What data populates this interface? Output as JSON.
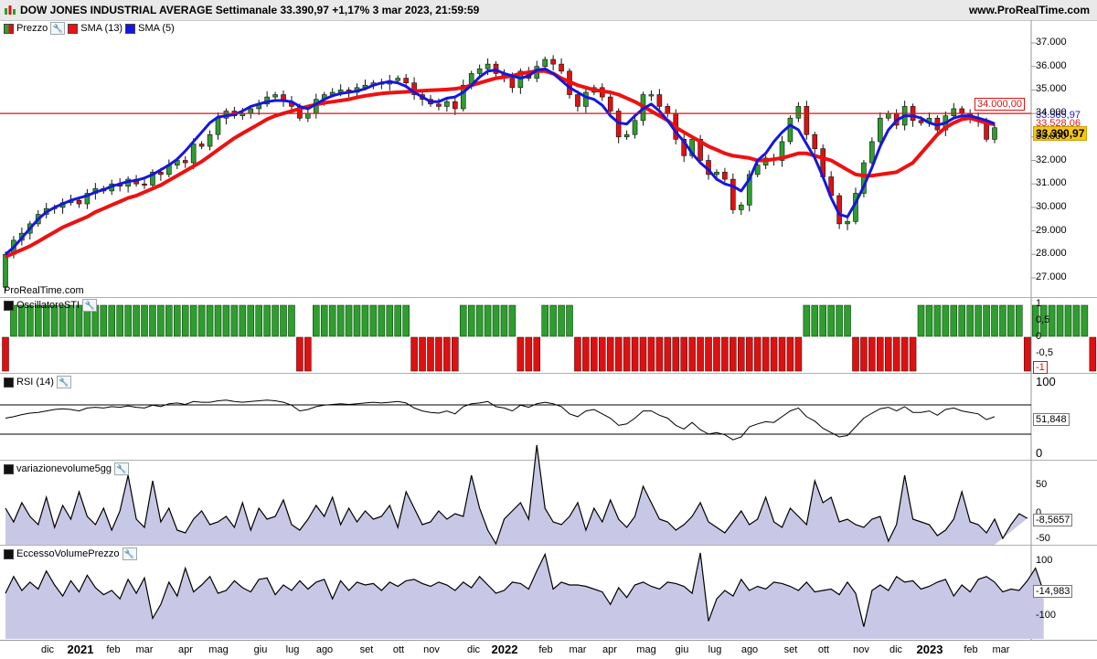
{
  "header": {
    "title": "DOW JONES INDUSTRIAL AVERAGE Settimanale 33.390,97 +1,17% 3 mar 2023, 21:59:59",
    "site": "www.ProRealTime.com"
  },
  "price_panel": {
    "legend": [
      {
        "label": "Prezzo",
        "color": "#2e8b2e"
      },
      {
        "label": "SMA (13)",
        "color": "#ee1111"
      },
      {
        "label": "SMA (5)",
        "color": "#1616dd"
      }
    ],
    "axis_labels": [
      "37.000",
      "36.000",
      "35.000",
      "34.000",
      "33.000",
      "32.000",
      "31.000",
      "30.000",
      "29.000",
      "28.000",
      "27.000"
    ],
    "level_tag": "34.000,00",
    "sma5_tag": "33.565,97",
    "sma13_tag": "33.528,06",
    "price_tag": "33.390,97",
    "watermark": "ProRealTime.com"
  },
  "sti_panel": {
    "legend": "OscillatoreSTI",
    "axis_labels": [
      "1",
      "0,5",
      "0",
      "-0,5"
    ],
    "value_tag": "-1"
  },
  "rsi_panel": {
    "legend": "RSI (14)",
    "axis_labels": [
      "100",
      "0"
    ],
    "value_tag": "51,848"
  },
  "vol5_panel": {
    "legend": "variazionevolume5gg",
    "axis_labels": [
      "50",
      "0",
      "-50"
    ],
    "value_tag": "-8,5657"
  },
  "evp_panel": {
    "legend": "EccessoVolumePrezzo",
    "axis_labels": [
      "100",
      "-100"
    ],
    "value_tag": "-14,983"
  },
  "x_axis": [
    {
      "label": "dic",
      "year": false
    },
    {
      "label": "2021",
      "year": true
    },
    {
      "label": "feb",
      "year": false
    },
    {
      "label": "mar",
      "year": false
    },
    {
      "label": "apr",
      "year": false
    },
    {
      "label": "mag",
      "year": false
    },
    {
      "label": "giu",
      "year": false
    },
    {
      "label": "lug",
      "year": false
    },
    {
      "label": "ago",
      "year": false
    },
    {
      "label": "set",
      "year": false
    },
    {
      "label": "ott",
      "year": false
    },
    {
      "label": "nov",
      "year": false
    },
    {
      "label": "dic",
      "year": false
    },
    {
      "label": "2022",
      "year": true
    },
    {
      "label": "feb",
      "year": false
    },
    {
      "label": "mar",
      "year": false
    },
    {
      "label": "apr",
      "year": false
    },
    {
      "label": "mag",
      "year": false
    },
    {
      "label": "giu",
      "year": false
    },
    {
      "label": "lug",
      "year": false
    },
    {
      "label": "ago",
      "year": false
    },
    {
      "label": "set",
      "year": false
    },
    {
      "label": "ott",
      "year": false
    },
    {
      "label": "nov",
      "year": false
    },
    {
      "label": "dic",
      "year": false
    },
    {
      "label": "2023",
      "year": true
    },
    {
      "label": "feb",
      "year": false
    },
    {
      "label": "mar",
      "year": false
    }
  ],
  "colors": {
    "up": "#2e9e2e",
    "down": "#dd1111",
    "sma13": "#ee1111",
    "sma5": "#1616dd",
    "price_tag": "#f5c518",
    "fill": "#c8c8e6"
  },
  "chart_data": {
    "type": "candlestick",
    "title": "DOW JONES INDUSTRIAL AVERAGE Settimanale",
    "ylim": [
      26500,
      37600
    ],
    "closes": [
      28000,
      28600,
      28900,
      29300,
      29700,
      29950,
      30000,
      30200,
      30300,
      30150,
      30600,
      30800,
      30700,
      31000,
      30900,
      31200,
      31000,
      30950,
      31500,
      31400,
      31800,
      32000,
      31900,
      32700,
      32600,
      33100,
      33800,
      34100,
      33900,
      34000,
      34200,
      34400,
      34700,
      34800,
      34500,
      34300,
      33800,
      34000,
      34600,
      34800,
      34900,
      35000,
      34900,
      35100,
      35200,
      35300,
      35250,
      35400,
      35500,
      35300,
      34800,
      34600,
      34400,
      34300,
      34500,
      34200,
      35200,
      35700,
      35900,
      36100,
      35700,
      35500,
      35100,
      35800,
      35500,
      36000,
      36300,
      36100,
      35800,
      34800,
      34300,
      34900,
      35100,
      34700,
      34100,
      33000,
      33100,
      33700,
      34800,
      34800,
      34300,
      34000,
      32900,
      32200,
      32900,
      32000,
      31400,
      31500,
      31200,
      29900,
      30100,
      31400,
      31800,
      32100,
      32000,
      32800,
      33800,
      34300,
      33100,
      32500,
      31300,
      30500,
      29300,
      29400,
      30600,
      31900,
      32800,
      33800,
      34000,
      33500,
      34300,
      33700,
      33600,
      33800,
      33300,
      33900,
      34200,
      34000,
      33800,
      33700,
      32900,
      33391
    ],
    "sma13": [
      27900,
      28050,
      28200,
      28350,
      28550,
      28750,
      28950,
      29150,
      29300,
      29450,
      29600,
      29800,
      29950,
      30100,
      30250,
      30400,
      30500,
      30650,
      30800,
      30950,
      31150,
      31350,
      31550,
      31750,
      31950,
      32200,
      32450,
      32700,
      32950,
      33150,
      33350,
      33550,
      33750,
      33900,
      34000,
      34100,
      34200,
      34300,
      34380,
      34450,
      34500,
      34550,
      34600,
      34680,
      34750,
      34800,
      34850,
      34880,
      34900,
      34920,
      34950,
      34970,
      34990,
      35000,
      35020,
      35050,
      35100,
      35200,
      35300,
      35400,
      35500,
      35550,
      35600,
      35700,
      35750,
      35800,
      35800,
      35700,
      35500,
      35350,
      35200,
      35100,
      35000,
      34950,
      34900,
      34800,
      34650,
      34500,
      34300,
      34100,
      33900,
      33700,
      33400,
      33200,
      33000,
      32800,
      32600,
      32450,
      32300,
      32200,
      32150,
      32100,
      32000,
      32000,
      32050,
      32100,
      32200,
      32300,
      32300,
      32200,
      32100,
      32000,
      31800,
      31600,
      31400,
      31350,
      31350,
      31400,
      31450,
      31500,
      31700,
      31900,
      32300,
      32700,
      33100,
      33400,
      33600,
      33750,
      33800,
      33700,
      33600,
      33528
    ],
    "sma5": [
      28000,
      28300,
      28700,
      29100,
      29500,
      29800,
      30000,
      30150,
      30300,
      30400,
      30500,
      30650,
      30750,
      30900,
      31000,
      31100,
      31150,
      31250,
      31400,
      31600,
      31800,
      32050,
      32400,
      32800,
      33200,
      33600,
      33850,
      33900,
      33950,
      34100,
      34300,
      34400,
      34500,
      34550,
      34550,
      34500,
      34300,
      34200,
      34400,
      34600,
      34750,
      34850,
      34900,
      34950,
      35050,
      35200,
      35300,
      35350,
      35300,
      35150,
      34900,
      34700,
      34500,
      34500,
      34650,
      34700,
      34900,
      35200,
      35550,
      35800,
      35850,
      35700,
      35600,
      35500,
      35600,
      35850,
      35900,
      35700,
      35400,
      35100,
      34900,
      34700,
      34600,
      34350,
      33900,
      33600,
      33550,
      33900,
      34200,
      34400,
      34100,
      33700,
      33200,
      32800,
      32300,
      31900,
      31600,
      31200,
      31000,
      30900,
      30700,
      31200,
      32000,
      32300,
      32800,
      33200,
      33500,
      33300,
      32700,
      32100,
      31300,
      30400,
      29700,
      29600,
      30200,
      30900,
      31700,
      32600,
      33300,
      33700,
      33900,
      33900,
      33800,
      33600,
      33500,
      33600,
      33800,
      33900,
      33900,
      33800,
      33700,
      33566
    ],
    "sti": [
      -1,
      1,
      1,
      1,
      1,
      1,
      1,
      1,
      1,
      1,
      1,
      1,
      1,
      1,
      1,
      1,
      1,
      1,
      1,
      1,
      1,
      1,
      1,
      1,
      1,
      1,
      1,
      1,
      1,
      1,
      1,
      1,
      1,
      1,
      1,
      1,
      -1,
      -1,
      1,
      1,
      1,
      1,
      1,
      1,
      1,
      1,
      1,
      1,
      1,
      1,
      -1,
      -1,
      -1,
      -1,
      -1,
      -1,
      1,
      1,
      1,
      1,
      1,
      1,
      1,
      -1,
      -1,
      -1,
      1,
      1,
      1,
      1,
      -1,
      -1,
      -1,
      -1,
      -1,
      -1,
      -1,
      -1,
      -1,
      -1,
      -1,
      -1,
      -1,
      -1,
      -1,
      -1,
      -1,
      -1,
      -1,
      -1,
      -1,
      -1,
      -1,
      -1,
      -1,
      -1,
      -1,
      -1,
      1,
      1,
      1,
      1,
      1,
      1,
      -1,
      -1,
      -1,
      -1,
      -1,
      -1,
      -1,
      -1,
      1,
      1,
      1,
      1,
      1,
      1,
      1,
      1,
      1,
      1,
      1,
      1,
      1,
      -1,
      1,
      1,
      1,
      1,
      1,
      1,
      1,
      -1,
      -1
    ],
    "rsi": [
      50,
      52,
      55,
      57,
      58,
      60,
      62,
      63,
      62,
      60,
      64,
      65,
      64,
      66,
      65,
      67,
      65,
      64,
      68,
      66,
      70,
      71,
      69,
      73,
      72,
      72,
      74,
      75,
      73,
      72,
      73,
      74,
      75,
      74,
      72,
      68,
      60,
      62,
      66,
      68,
      69,
      70,
      69,
      70,
      71,
      72,
      71,
      72,
      73,
      71,
      64,
      60,
      58,
      57,
      60,
      56,
      66,
      70,
      71,
      73,
      66,
      64,
      60,
      68,
      65,
      70,
      72,
      70,
      66,
      56,
      52,
      60,
      62,
      56,
      50,
      40,
      42,
      50,
      60,
      60,
      54,
      50,
      40,
      35,
      44,
      34,
      28,
      30,
      27,
      20,
      24,
      38,
      42,
      45,
      44,
      52,
      60,
      64,
      52,
      46,
      36,
      30,
      24,
      26,
      38,
      50,
      57,
      63,
      65,
      60,
      66,
      58,
      58,
      60,
      54,
      62,
      64,
      60,
      58,
      56,
      48,
      52
    ],
    "vol5": [
      10,
      -15,
      20,
      -5,
      -20,
      30,
      -25,
      15,
      -10,
      40,
      -5,
      -20,
      10,
      -30,
      5,
      70,
      -10,
      -25,
      60,
      -15,
      10,
      -30,
      -35,
      -10,
      5,
      -20,
      -15,
      -5,
      -25,
      20,
      -30,
      10,
      -10,
      -5,
      25,
      -20,
      -30,
      -10,
      15,
      -5,
      30,
      -20,
      10,
      -15,
      5,
      -10,
      -5,
      15,
      -25,
      40,
      10,
      -20,
      -15,
      5,
      -10,
      0,
      -5,
      70,
      10,
      -30,
      -55,
      -10,
      5,
      20,
      -10,
      125,
      10,
      -15,
      -20,
      -5,
      20,
      -30,
      10,
      -15,
      25,
      -10,
      -25,
      -5,
      50,
      20,
      -10,
      -15,
      -30,
      -20,
      -5,
      20,
      -15,
      -25,
      -35,
      -15,
      5,
      -20,
      -10,
      30,
      -15,
      -25,
      10,
      -5,
      -20,
      60,
      20,
      30,
      -15,
      -10,
      -20,
      -25,
      -10,
      -5,
      -50,
      -20,
      70,
      -10,
      -15,
      -20,
      -40,
      -30,
      -10,
      40,
      -15,
      -20,
      -35,
      -10,
      -45,
      -20,
      0,
      -8.5657
    ]
  },
  "evp_series": [
    -20,
    40,
    -10,
    20,
    -5,
    60,
    10,
    -30,
    25,
    -15,
    45,
    0,
    -25,
    -10,
    -40,
    30,
    -20,
    35,
    -110,
    -60,
    20,
    -30,
    70,
    -15,
    10,
    40,
    -20,
    -10,
    25,
    0,
    -15,
    30,
    35,
    -25,
    10,
    -10,
    25,
    -5,
    20,
    30,
    -40,
    25,
    -10,
    20,
    10,
    15,
    -10,
    20,
    5,
    25,
    30,
    15,
    5,
    20,
    10,
    -10,
    20,
    0,
    40,
    10,
    -20,
    -10,
    20,
    15,
    -5,
    60,
    120,
    -5,
    20,
    10,
    10,
    5,
    -5,
    -15,
    -60,
    0,
    -35,
    10,
    20,
    5,
    -5,
    20,
    15,
    5,
    -20,
    125,
    -120,
    -40,
    -10,
    -30,
    30,
    -10,
    5,
    -5,
    20,
    15,
    5,
    -10,
    20,
    -15,
    -10,
    -5,
    -25,
    20,
    -20,
    -140,
    -10,
    10,
    -10,
    40,
    20,
    25,
    -5,
    5,
    20,
    30,
    -30,
    10,
    -15,
    30,
    40,
    20,
    -15,
    -5,
    -10,
    25,
    70,
    -15
  ]
}
